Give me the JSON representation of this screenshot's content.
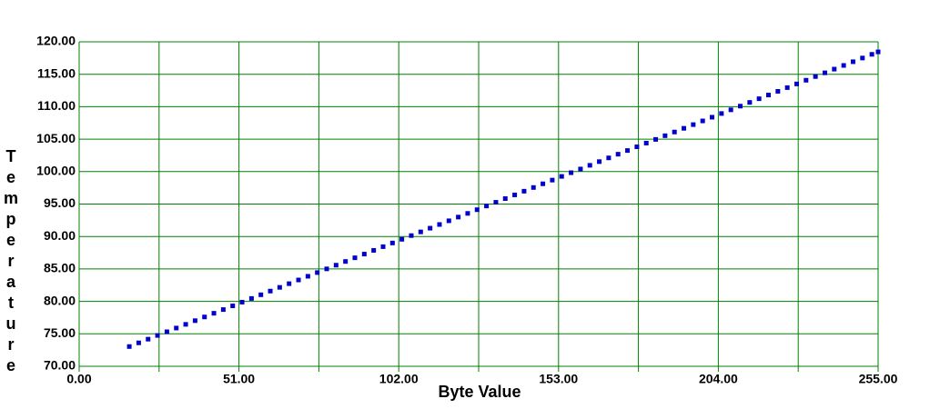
{
  "chart_data": {
    "type": "scatter",
    "xlabel": "Byte Value",
    "ylabel": "Temperature",
    "color": "#0000cc",
    "grid": true,
    "xlim": [
      0,
      255
    ],
    "ylim": [
      70,
      120
    ],
    "xticks": [
      {
        "value": 0,
        "label": "0.00"
      },
      {
        "value": 51,
        "label": "51.00"
      },
      {
        "value": 102,
        "label": "102.00"
      },
      {
        "value": 153,
        "label": "153.00"
      },
      {
        "value": 204,
        "label": "204.00"
      },
      {
        "value": 255,
        "label": "255.00"
      }
    ],
    "xminor": [
      25.5,
      76.5,
      127.5,
      178.5,
      229.5
    ],
    "yticks": [
      {
        "value": 70,
        "label": "70.00"
      },
      {
        "value": 75,
        "label": "75.00"
      },
      {
        "value": 80,
        "label": "80.00"
      },
      {
        "value": 85,
        "label": "85.00"
      },
      {
        "value": 90,
        "label": "90.00"
      },
      {
        "value": 95,
        "label": "95.00"
      },
      {
        "value": 100,
        "label": "100.00"
      },
      {
        "value": 105,
        "label": "105.00"
      },
      {
        "value": 110,
        "label": "110.00"
      },
      {
        "value": 115,
        "label": "115.00"
      },
      {
        "value": 120,
        "label": "120.00"
      }
    ],
    "x": [
      16,
      19,
      22,
      25,
      28,
      31,
      34,
      37,
      40,
      43,
      46,
      49,
      52,
      55,
      58,
      61,
      64,
      67,
      70,
      73,
      76,
      79,
      82,
      85,
      88,
      91,
      94,
      97,
      100,
      103,
      106,
      109,
      112,
      115,
      118,
      121,
      124,
      127,
      130,
      133,
      136,
      139,
      142,
      145,
      148,
      151,
      154,
      157,
      160,
      163,
      166,
      169,
      172,
      175,
      178,
      181,
      184,
      187,
      190,
      193,
      196,
      199,
      202,
      205,
      208,
      211,
      214,
      217,
      220,
      223,
      226,
      229,
      232,
      235,
      238,
      241,
      244,
      247,
      250,
      253,
      255
    ],
    "values": [
      73.04,
      73.61,
      74.18,
      74.75,
      75.32,
      75.89,
      76.46,
      77.03,
      77.6,
      78.17,
      78.74,
      79.31,
      79.88,
      80.45,
      81.02,
      81.59,
      82.16,
      82.73,
      83.3,
      83.87,
      84.44,
      85.01,
      85.58,
      86.15,
      86.72,
      87.29,
      87.86,
      88.43,
      89,
      89.57,
      90.14,
      90.71,
      91.28,
      91.85,
      92.42,
      92.99,
      93.56,
      94.13,
      94.7,
      95.27,
      95.84,
      96.41,
      96.98,
      97.55,
      98.12,
      98.69,
      99.26,
      99.83,
      100.4,
      100.97,
      101.54,
      102.11,
      102.68,
      103.25,
      103.82,
      104.39,
      104.96,
      105.53,
      106.1,
      106.67,
      107.24,
      107.81,
      108.38,
      108.95,
      109.52,
      110.09,
      110.66,
      111.23,
      111.8,
      112.37,
      112.94,
      113.51,
      114.08,
      114.65,
      115.22,
      115.79,
      116.36,
      116.93,
      117.5,
      118.07,
      118.45
    ]
  }
}
